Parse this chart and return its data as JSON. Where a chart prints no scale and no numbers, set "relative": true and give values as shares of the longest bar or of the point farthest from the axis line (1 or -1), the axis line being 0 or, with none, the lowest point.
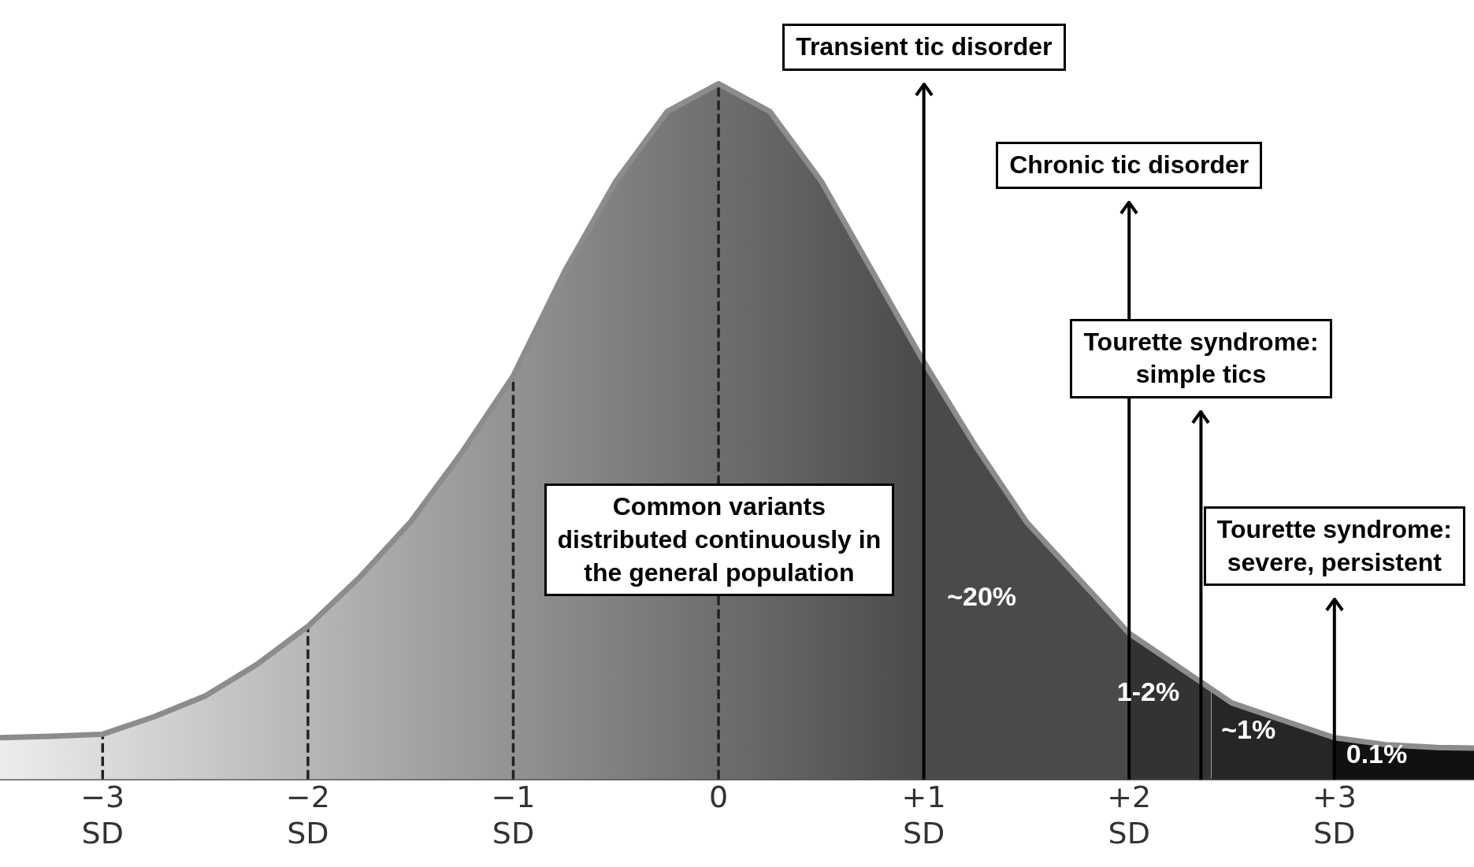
{
  "chart_data": {
    "type": "area",
    "relative": true,
    "xlim": [
      -3.5,
      3.68
    ],
    "xticks": [
      {
        "value": -3,
        "label": "−3\nSD"
      },
      {
        "value": -2,
        "label": "−2\nSD"
      },
      {
        "value": -1,
        "label": "−1\nSD"
      },
      {
        "value": 0,
        "label": "0"
      },
      {
        "value": 1,
        "label": "+1\nSD"
      },
      {
        "value": 2,
        "label": "+2\nSD"
      },
      {
        "value": 3,
        "label": "+3\nSD"
      }
    ],
    "legend": false,
    "series": [
      {
        "color": "#6a6a6a",
        "x": [
          -3.5,
          -3.25,
          -3,
          -2.75,
          -2.5,
          -2.25,
          -2,
          -1.75,
          -1.5,
          -1.25,
          -1,
          -0.75,
          -0.5,
          -0.25,
          0,
          0.25,
          0.5,
          0.75,
          1
        ],
        "values": [
          0.06,
          0.062,
          0.065,
          0.09,
          0.12,
          0.165,
          0.22,
          0.29,
          0.37,
          0.47,
          0.58,
          0.73,
          0.86,
          0.96,
          1,
          0.96,
          0.86,
          0.73,
          0.6
        ]
      },
      {
        "color": "#4a4a4a",
        "x": [
          1,
          1.25,
          1.5,
          1.75,
          2
        ],
        "values": [
          0.6,
          0.48,
          0.37,
          0.29,
          0.21
        ]
      },
      {
        "color": "#333333",
        "x": [
          2,
          2.25,
          2.4
        ],
        "values": [
          0.21,
          0.16,
          0.13
        ]
      },
      {
        "color": "#262626",
        "x": [
          2.4,
          2.5,
          2.75,
          3
        ],
        "values": [
          0.13,
          0.11,
          0.085,
          0.06
        ]
      },
      {
        "color": "#111111",
        "x": [
          3,
          3.25,
          3.5,
          3.68
        ],
        "values": [
          0.06,
          0.05,
          0.046,
          0.045
        ]
      },
      {
        "type": "line",
        "color": "#8c8c8c",
        "x": [
          -3.5,
          -3.25,
          -3,
          -2.75,
          -2.5,
          -2.25,
          -2,
          -1.75,
          -1.5,
          -1.25,
          -1,
          -0.75,
          -0.5,
          -0.25,
          0,
          0.25,
          0.5,
          0.75,
          1,
          1.25,
          1.5,
          1.75,
          2,
          2.25,
          2.4,
          2.5,
          2.75,
          3,
          3.25,
          3.5,
          3.68
        ],
        "values": [
          0.06,
          0.062,
          0.065,
          0.09,
          0.12,
          0.165,
          0.22,
          0.29,
          0.37,
          0.47,
          0.58,
          0.73,
          0.86,
          0.96,
          1,
          0.96,
          0.86,
          0.73,
          0.6,
          0.48,
          0.37,
          0.29,
          0.21,
          0.16,
          0.13,
          0.11,
          0.085,
          0.06,
          0.05,
          0.046,
          0.045
        ]
      },
      {
        "type": "line",
        "color": "#222222",
        "line_style": "dashed",
        "x": [
          -3,
          -3
        ],
        "values": [
          0,
          0.065
        ]
      },
      {
        "type": "line",
        "color": "#222222",
        "line_style": "dashed",
        "x": [
          -2,
          -2
        ],
        "values": [
          0,
          0.22
        ]
      },
      {
        "type": "line",
        "color": "#222222",
        "line_style": "dashed",
        "x": [
          -1,
          -1
        ],
        "values": [
          0,
          0.58
        ]
      },
      {
        "type": "line",
        "color": "#222222",
        "line_style": "dashed",
        "x": [
          0,
          0
        ],
        "values": [
          0,
          1
        ]
      }
    ],
    "ref_lines": [
      {
        "axis": "x",
        "value": 1,
        "label": "Transient tic disorder",
        "line_style": "solid",
        "color": "#000000"
      },
      {
        "axis": "x",
        "value": 2,
        "label": "Chronic tic disorder",
        "line_style": "solid",
        "color": "#000000"
      },
      {
        "axis": "x",
        "value": 2.35,
        "label": "Tourette syndrome:\nsimple tics",
        "line_style": "solid",
        "color": "#000000"
      },
      {
        "axis": "x",
        "value": 3,
        "label": "Tourette syndrome:\nsevere, persistent",
        "line_style": "solid",
        "color": "#000000"
      }
    ],
    "annotations": [
      "Common variants\ndistributed  continuously in\nthe general population",
      "~20%",
      "1-2%",
      "~1%",
      "0.1%"
    ]
  }
}
